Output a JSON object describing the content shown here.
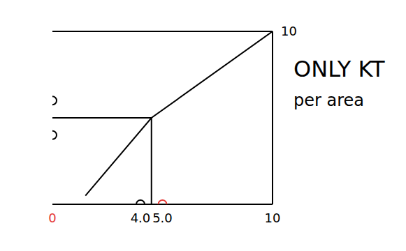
{
  "chart_data": {
    "type": "line",
    "annotations": [
      "ONLY KT",
      "per area"
    ],
    "x": [
      1.5,
      4.5,
      10
    ],
    "values": [
      0.5,
      5,
      10
    ],
    "color": "#000000",
    "xlim": [
      0,
      10
    ],
    "xticks": [
      0,
      {
        "value": 4,
        "label": "4.0"
      },
      {
        "value": 5,
        "label": "5.0"
      },
      10
    ],
    "ylim": [
      0,
      10
    ],
    "yticks": [
      10
    ],
    "segments": [
      [
        [
          4.5,
          0
        ],
        [
          4.5,
          5
        ]
      ],
      [
        [
          0,
          5
        ],
        [
          4.5,
          5
        ]
      ]
    ],
    "markers": [
      {
        "x": 5,
        "y": 0,
        "color": "#e53935"
      },
      {
        "x": 4,
        "y": 0,
        "color": "#000000"
      },
      {
        "x": 0,
        "y": 6,
        "color": "#000000"
      },
      {
        "x": 0,
        "y": 4,
        "color": "#000000"
      }
    ]
  }
}
